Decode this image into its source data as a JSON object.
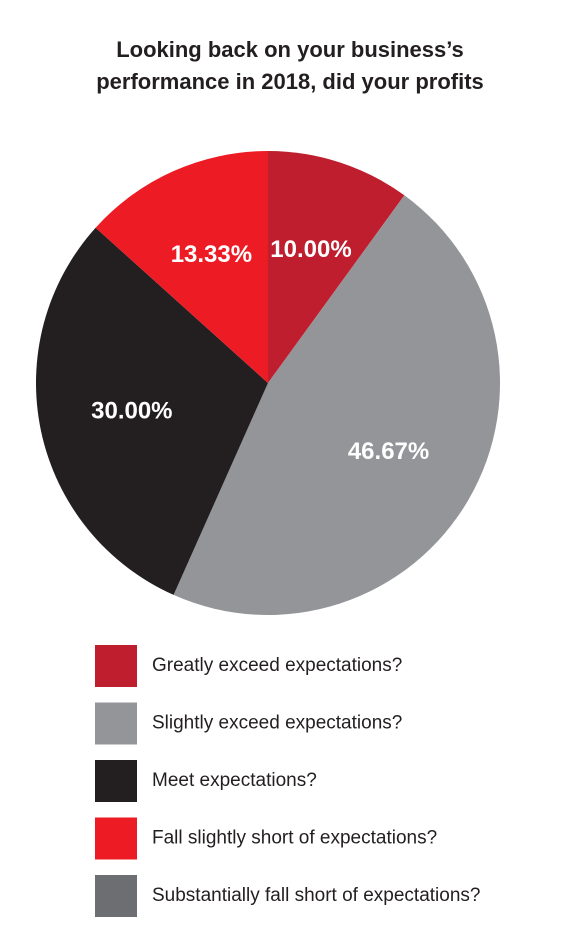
{
  "chart_data": {
    "type": "pie",
    "title": "Looking back on your business’s performance in 2018, did your profits",
    "categories": [
      "Greatly exceed expectations?",
      "Slightly exceed expectations?",
      "Meet expectations?",
      "Fall slightly short of expectations?",
      "Substantially fall short of expectations?"
    ],
    "values": [
      10,
      46.67,
      30,
      13.33,
      0
    ],
    "value_labels": [
      "10.00%",
      "46.67%",
      "30.00%",
      "13.33%",
      null
    ],
    "colors": [
      "#be1e2d",
      "#939598",
      "#231f20",
      "#ed1c24",
      "#6d6e71"
    ]
  }
}
